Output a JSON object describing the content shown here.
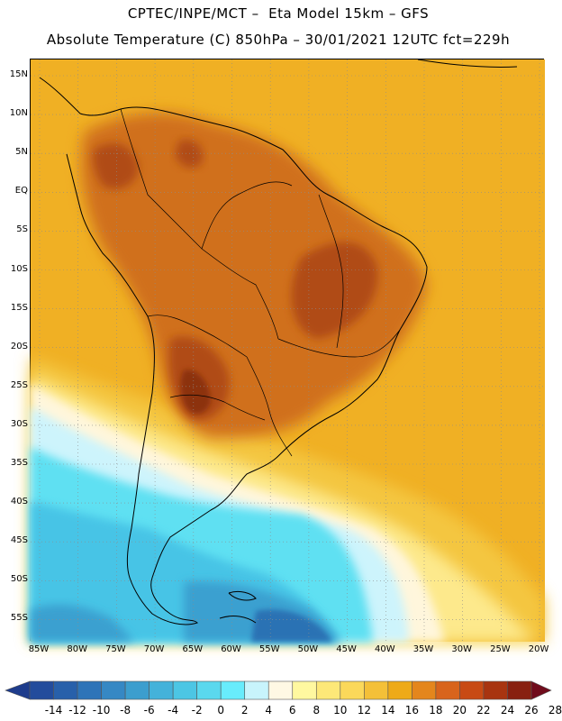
{
  "header": {
    "line1": "CPTEC/INPE/MCT –  Eta Model 15km – GFS",
    "line2": "Absolute Temperature (C) 850hPa – 30/01/2021 12UTC fct=229h"
  },
  "map": {
    "lat_labels": [
      "15N",
      "10N",
      "5N",
      "EQ",
      "5S",
      "10S",
      "15S",
      "20S",
      "25S",
      "30S",
      "35S",
      "40S",
      "45S",
      "50S",
      "55S"
    ],
    "lon_labels": [
      "85W",
      "80W",
      "75W",
      "70W",
      "65W",
      "60W",
      "55W",
      "50W",
      "45W",
      "40W",
      "35W",
      "30W",
      "25W",
      "20W"
    ],
    "colors": {
      "ocean_warm": "#f0b024",
      "land_hot": "#d0701c",
      "land_very_hot": "#b04c14",
      "land_hottest": "#8c3010",
      "mid_yellow": "#f4c640",
      "pale_yellow": "#fde98c",
      "cream": "#fff6dc",
      "pale_cyan": "#cdf4fc",
      "cyan": "#5ee0f2",
      "light_blue": "#46c4e6",
      "mid_blue": "#3aa0d0",
      "deep_blue": "#2a72b4",
      "coast_line": "#000000",
      "grid_line": "#8c8c8c"
    }
  },
  "colorbar": {
    "labels": [
      "-14",
      "-12",
      "-10",
      "-8",
      "-6",
      "-4",
      "-2",
      "0",
      "2",
      "4",
      "6",
      "8",
      "10",
      "12",
      "14",
      "16",
      "18",
      "20",
      "22",
      "24",
      "26",
      "28"
    ],
    "colors": [
      "#1e3c8c",
      "#234c9c",
      "#2860aa",
      "#2e74b8",
      "#3688c4",
      "#3c9ece",
      "#44b2da",
      "#4cc6e4",
      "#5ad8ee",
      "#68ecfc",
      "#c8f4fc",
      "#fff8e4",
      "#fff8a0",
      "#fde878",
      "#fbd85a",
      "#f4c038",
      "#eeaa18",
      "#e4861c",
      "#d8641c",
      "#c84a14",
      "#a83410",
      "#882010",
      "#700c1c"
    ]
  }
}
